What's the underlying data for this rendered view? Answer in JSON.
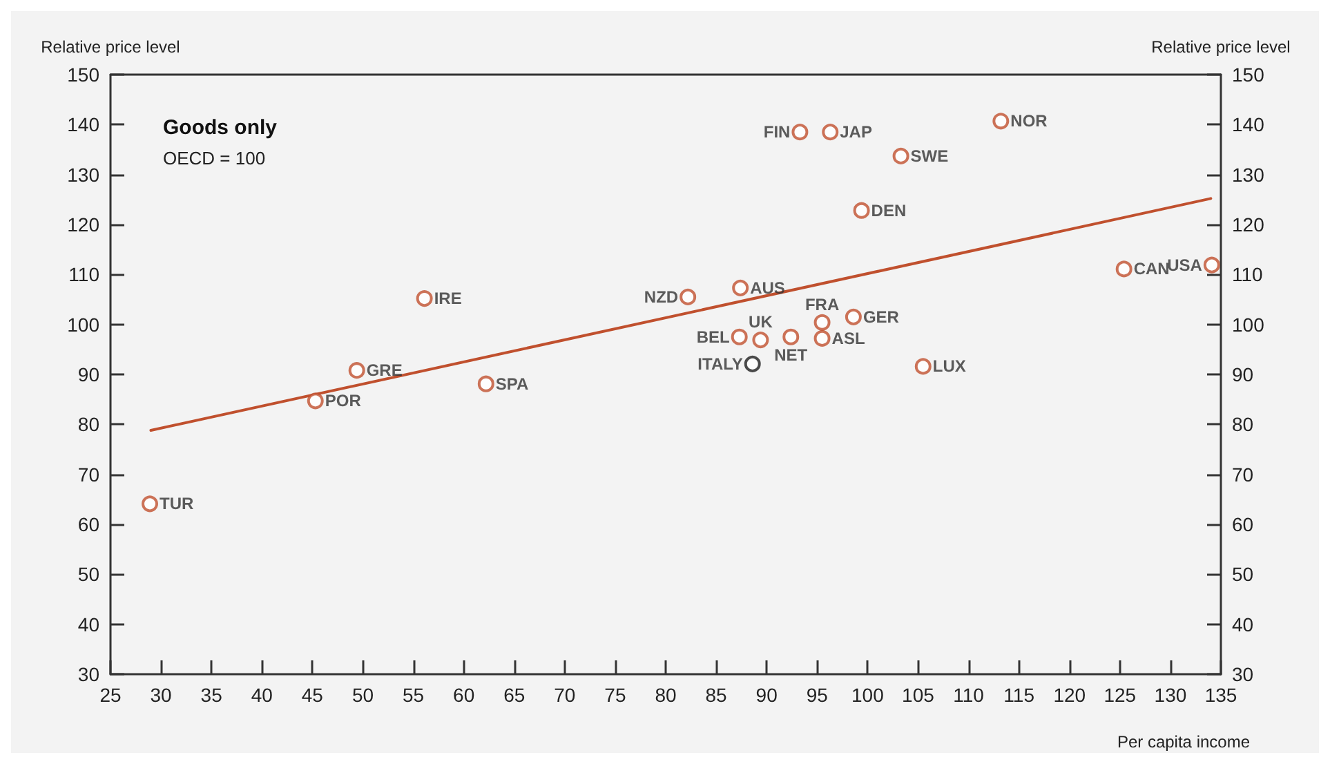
{
  "chart_data": {
    "type": "scatter",
    "title": "Goods only",
    "subtitle": "OECD = 100",
    "xlabel": "Per capita income",
    "ylabel": "Relative price level",
    "y2label": "Relative price level",
    "xlim": [
      25,
      135
    ],
    "xticks": [
      25,
      30,
      35,
      40,
      45,
      50,
      55,
      60,
      65,
      70,
      75,
      80,
      85,
      90,
      95,
      100,
      105,
      110,
      115,
      120,
      125,
      130,
      135
    ],
    "ylim": [
      30,
      150
    ],
    "yticks": [
      30,
      40,
      50,
      60,
      70,
      80,
      90,
      100,
      110,
      120,
      130,
      140,
      150
    ],
    "y2lim": [
      30,
      150
    ],
    "y2ticks": [
      30,
      40,
      50,
      60,
      70,
      80,
      90,
      100,
      110,
      120,
      130,
      140,
      150
    ],
    "grid": false,
    "marker": "circle",
    "series": [
      {
        "color": "#c0502e",
        "x": [
          28.9,
          45.3,
          49.4,
          56.1,
          62.2,
          82.2,
          87.4,
          87.3,
          89.4,
          92.4,
          95.5,
          95.5,
          98.6,
          93.3,
          96.3,
          103.3,
          99.4,
          113.2,
          105.5,
          125.4,
          134.1
        ],
        "values": [
          64.1,
          84.7,
          90.8,
          105.2,
          88.1,
          105.5,
          107.3,
          97.5,
          96.9,
          97.5,
          97.2,
          100.4,
          101.5,
          138.5,
          138.5,
          133.7,
          122.8,
          140.7,
          91.6,
          111.1,
          111.9
        ]
      },
      {
        "color": "#1e1e1e",
        "x": [
          88.6
        ],
        "values": [
          92.1
        ]
      },
      {
        "type": "line",
        "color": "#c0502e",
        "marker": "none",
        "x": [
          29,
          134
        ],
        "values": [
          78.8,
          125.2
        ]
      }
    ],
    "annotations": [
      {
        "text": "TUR",
        "x": 28.9,
        "y": 64.1
      },
      {
        "text": "POR",
        "x": 45.3,
        "y": 84.7
      },
      {
        "text": "GRE",
        "x": 49.4,
        "y": 90.8
      },
      {
        "text": "IRE",
        "x": 56.1,
        "y": 105.2
      },
      {
        "text": "SPA",
        "x": 62.2,
        "y": 88.1
      },
      {
        "text": "NZD",
        "x": 82.2,
        "y": 105.5
      },
      {
        "text": "AUS",
        "x": 87.4,
        "y": 107.3
      },
      {
        "text": "BEL",
        "x": 87.3,
        "y": 97.5
      },
      {
        "text": "UK",
        "x": 89.4,
        "y": 96.9
      },
      {
        "text": "NET",
        "x": 92.4,
        "y": 97.5
      },
      {
        "text": "ASL",
        "x": 95.5,
        "y": 97.2
      },
      {
        "text": "FRA",
        "x": 95.5,
        "y": 100.4
      },
      {
        "text": "GER",
        "x": 98.6,
        "y": 101.5
      },
      {
        "text": "FIN",
        "x": 93.3,
        "y": 138.5
      },
      {
        "text": "JAP",
        "x": 96.3,
        "y": 138.5
      },
      {
        "text": "SWE",
        "x": 103.3,
        "y": 133.7
      },
      {
        "text": "DEN",
        "x": 99.4,
        "y": 122.8
      },
      {
        "text": "NOR",
        "x": 113.2,
        "y": 140.7
      },
      {
        "text": "LUX",
        "x": 105.5,
        "y": 91.6
      },
      {
        "text": "CAN",
        "x": 125.4,
        "y": 111.1
      },
      {
        "text": "USA",
        "x": 134.1,
        "y": 111.9
      },
      {
        "text": "ITALY",
        "x": 88.6,
        "y": 92.1
      }
    ]
  }
}
